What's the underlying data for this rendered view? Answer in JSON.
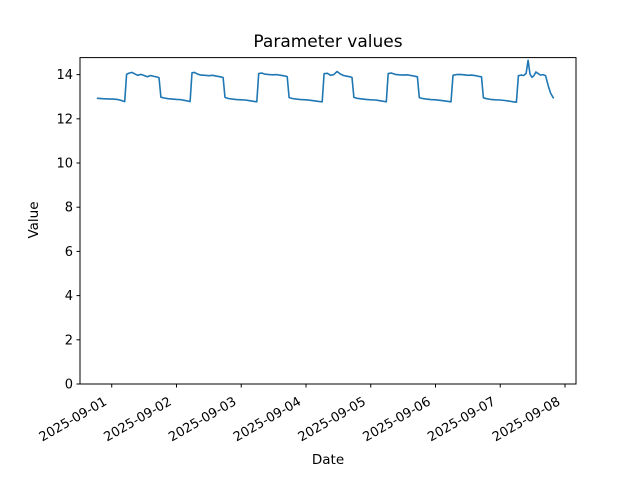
{
  "chart_data": {
    "type": "line",
    "title": "Parameter values",
    "xlabel": "Date",
    "ylabel": "Value",
    "grid": false,
    "legend": false,
    "background_color": "#ffffff",
    "axis_color": "#000000",
    "line_color": "#1f77b4",
    "x_origin_date": "2025-09-01",
    "x_tick_days": [
      0,
      1,
      2,
      3,
      4,
      5,
      6,
      7
    ],
    "x_tick_labels": [
      "2025-09-01",
      "2025-09-02",
      "2025-09-03",
      "2025-09-04",
      "2025-09-05",
      "2025-09-06",
      "2025-09-07",
      "2025-09-08"
    ],
    "x_tick_rotation_deg": 30,
    "y_ticks": [
      0,
      2,
      4,
      6,
      8,
      10,
      12,
      14
    ],
    "xlim_days": [
      -0.49,
      7.17
    ],
    "ylim": [
      0,
      14.77
    ],
    "series": [
      {
        "name": "series-1",
        "points": [
          [
            -0.22,
            12.93
          ],
          [
            -0.14,
            12.91
          ],
          [
            -0.06,
            12.9
          ],
          [
            0.02,
            12.89
          ],
          [
            0.1,
            12.87
          ],
          [
            0.16,
            12.82
          ],
          [
            0.2,
            12.78
          ],
          [
            0.23,
            14.02
          ],
          [
            0.27,
            14.07
          ],
          [
            0.31,
            14.1
          ],
          [
            0.35,
            14.04
          ],
          [
            0.4,
            13.97
          ],
          [
            0.45,
            14.01
          ],
          [
            0.5,
            13.96
          ],
          [
            0.55,
            13.9
          ],
          [
            0.6,
            13.96
          ],
          [
            0.65,
            13.92
          ],
          [
            0.7,
            13.89
          ],
          [
            0.73,
            13.86
          ],
          [
            0.76,
            12.98
          ],
          [
            0.81,
            12.94
          ],
          [
            0.87,
            12.91
          ],
          [
            0.94,
            12.89
          ],
          [
            1.0,
            12.88
          ],
          [
            1.06,
            12.87
          ],
          [
            1.12,
            12.84
          ],
          [
            1.18,
            12.8
          ],
          [
            1.21,
            12.78
          ],
          [
            1.24,
            14.08
          ],
          [
            1.28,
            14.1
          ],
          [
            1.33,
            14.02
          ],
          [
            1.38,
            13.98
          ],
          [
            1.44,
            13.97
          ],
          [
            1.5,
            13.95
          ],
          [
            1.56,
            13.97
          ],
          [
            1.62,
            13.93
          ],
          [
            1.68,
            13.9
          ],
          [
            1.72,
            13.87
          ],
          [
            1.75,
            12.97
          ],
          [
            1.8,
            12.92
          ],
          [
            1.86,
            12.89
          ],
          [
            1.93,
            12.87
          ],
          [
            2.0,
            12.86
          ],
          [
            2.06,
            12.85
          ],
          [
            2.13,
            12.82
          ],
          [
            2.2,
            12.79
          ],
          [
            2.24,
            12.77
          ],
          [
            2.27,
            14.05
          ],
          [
            2.32,
            14.07
          ],
          [
            2.37,
            14.02
          ],
          [
            2.43,
            14.0
          ],
          [
            2.49,
            13.99
          ],
          [
            2.55,
            14.0
          ],
          [
            2.61,
            13.97
          ],
          [
            2.67,
            13.94
          ],
          [
            2.71,
            13.91
          ],
          [
            2.74,
            12.96
          ],
          [
            2.79,
            12.92
          ],
          [
            2.85,
            12.89
          ],
          [
            2.92,
            12.87
          ],
          [
            3.0,
            12.86
          ],
          [
            3.07,
            12.84
          ],
          [
            3.14,
            12.81
          ],
          [
            3.21,
            12.78
          ],
          [
            3.25,
            12.77
          ],
          [
            3.28,
            14.04
          ],
          [
            3.33,
            14.06
          ],
          [
            3.38,
            13.97
          ],
          [
            3.43,
            14.0
          ],
          [
            3.48,
            14.14
          ],
          [
            3.53,
            14.03
          ],
          [
            3.58,
            13.96
          ],
          [
            3.63,
            13.93
          ],
          [
            3.68,
            13.9
          ],
          [
            3.71,
            13.87
          ],
          [
            3.74,
            12.97
          ],
          [
            3.79,
            12.93
          ],
          [
            3.86,
            12.9
          ],
          [
            3.93,
            12.88
          ],
          [
            4.0,
            12.86
          ],
          [
            4.07,
            12.85
          ],
          [
            4.14,
            12.82
          ],
          [
            4.21,
            12.79
          ],
          [
            4.24,
            12.77
          ],
          [
            4.27,
            14.05
          ],
          [
            4.32,
            14.07
          ],
          [
            4.38,
            14.01
          ],
          [
            4.44,
            13.99
          ],
          [
            4.5,
            13.98
          ],
          [
            4.56,
            13.99
          ],
          [
            4.62,
            13.96
          ],
          [
            4.68,
            13.93
          ],
          [
            4.72,
            13.9
          ],
          [
            4.75,
            12.96
          ],
          [
            4.8,
            12.92
          ],
          [
            4.86,
            12.89
          ],
          [
            4.93,
            12.87
          ],
          [
            5.0,
            12.86
          ],
          [
            5.07,
            12.84
          ],
          [
            5.14,
            12.81
          ],
          [
            5.2,
            12.79
          ],
          [
            5.24,
            12.77
          ],
          [
            5.27,
            13.97
          ],
          [
            5.32,
            14.0
          ],
          [
            5.38,
            14.01
          ],
          [
            5.44,
            13.99
          ],
          [
            5.5,
            13.97
          ],
          [
            5.56,
            13.98
          ],
          [
            5.62,
            13.95
          ],
          [
            5.67,
            13.92
          ],
          [
            5.71,
            13.9
          ],
          [
            5.74,
            12.95
          ],
          [
            5.79,
            12.91
          ],
          [
            5.85,
            12.88
          ],
          [
            5.92,
            12.86
          ],
          [
            6.0,
            12.85
          ],
          [
            6.07,
            12.83
          ],
          [
            6.14,
            12.8
          ],
          [
            6.2,
            12.77
          ],
          [
            6.25,
            12.75
          ],
          [
            6.28,
            13.95
          ],
          [
            6.32,
            13.98
          ],
          [
            6.36,
            13.96
          ],
          [
            6.4,
            14.05
          ],
          [
            6.43,
            14.65
          ],
          [
            6.46,
            14.02
          ],
          [
            6.49,
            13.88
          ],
          [
            6.52,
            13.95
          ],
          [
            6.55,
            14.12
          ],
          [
            6.58,
            14.06
          ],
          [
            6.62,
            13.98
          ],
          [
            6.66,
            14.0
          ],
          [
            6.7,
            13.95
          ],
          [
            6.74,
            13.5
          ],
          [
            6.78,
            13.15
          ],
          [
            6.82,
            12.95
          ]
        ]
      }
    ]
  }
}
